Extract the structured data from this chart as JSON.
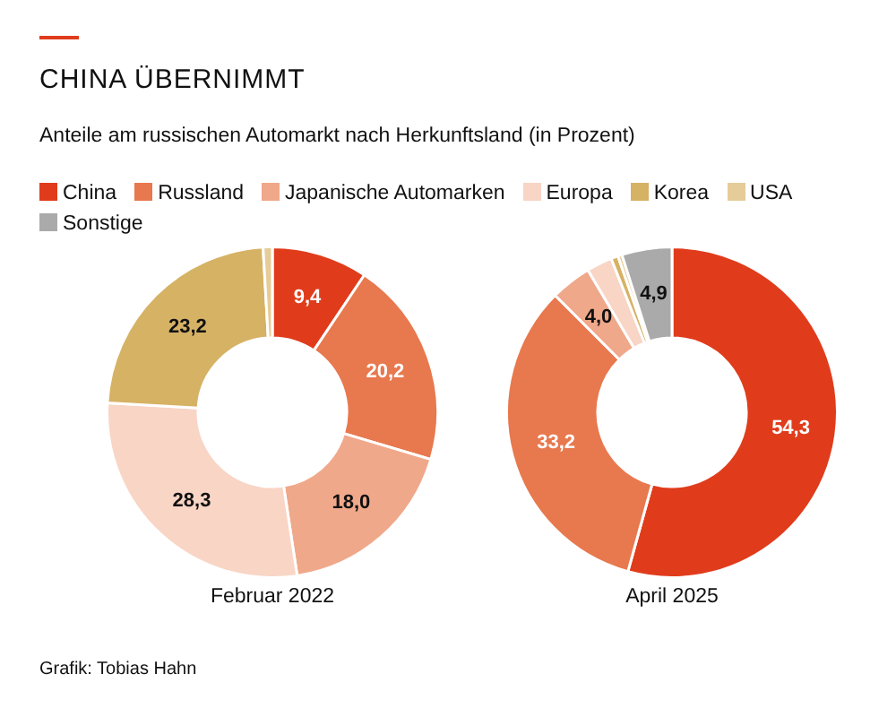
{
  "chart_data": {
    "type": "donut",
    "title": "CHINA ÜBERNIMMT",
    "subtitle": "Anteile am russischen Automarkt nach Herkunftsland (in Prozent)",
    "legend": "top",
    "annotations": [
      "Grafik: Tobias Hahn"
    ],
    "categories": [
      "China",
      "Russland",
      "Japanische Automarken",
      "Europa",
      "Korea",
      "USA",
      "Sonstige"
    ],
    "colors": [
      "#e03c1c",
      "#e8784e",
      "#f0a88a",
      "#f8d5c5",
      "#d6b265",
      "#e6cc98",
      "#aaaaaa"
    ],
    "series": [
      {
        "name": "Februar 2022",
        "values": [
          9.4,
          20.2,
          18.0,
          28.3,
          23.2,
          0.9,
          0
        ],
        "value_labels": [
          "9,4",
          "20,2",
          "18,0",
          "28,3",
          "23,2",
          null,
          null
        ]
      },
      {
        "name": "April 2025",
        "values": [
          54.3,
          33.2,
          4.0,
          2.5,
          0.7,
          0.4,
          4.9
        ],
        "value_labels": [
          "54,3",
          "33,2",
          "4,0",
          null,
          null,
          null,
          "4,9"
        ]
      }
    ]
  }
}
